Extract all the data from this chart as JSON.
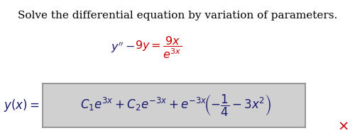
{
  "title_text": "Solve the differential equation by variation of parameters.",
  "title_color": "#000000",
  "title_fontsize": 11.0,
  "eq_lhs": "$y'' - $",
  "eq_rhs_red": "$9y = \\dfrac{9x}{e^{3x}}$",
  "eq1_color_left": "#000000",
  "eq1_color_red": "#cc0000",
  "solution_box_text": "$C_1e^{3x} + C_2e^{-3x} + e^{-3x}\\!\\left(-\\dfrac{1}{4} - 3x^2\\right)$",
  "solution_prefix": "$y(x) = $",
  "box_facecolor": "#d0d0d0",
  "box_edgecolor": "#888888",
  "background_color": "#ffffff",
  "text_color": "#1a1a6e",
  "red_x_color": "#cc0000",
  "font_family": "DejaVu Serif"
}
